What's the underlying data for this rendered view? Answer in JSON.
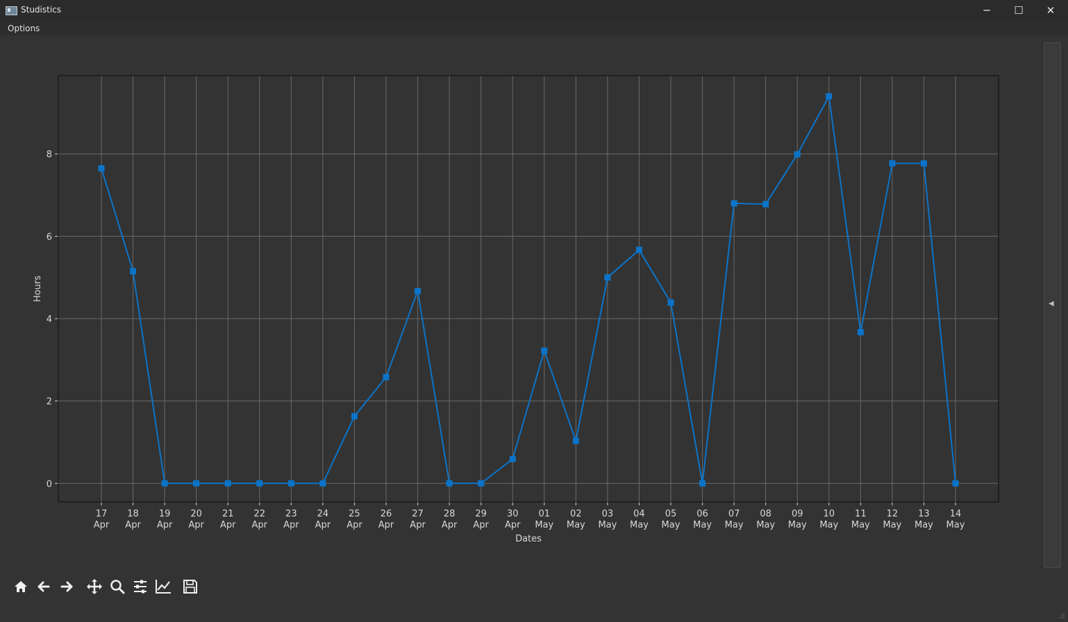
{
  "window": {
    "title": "Studistics",
    "minimize_glyph": "─",
    "maximize_glyph": "☐",
    "close_glyph": "✕"
  },
  "menu": {
    "items": [
      "Options"
    ]
  },
  "scrollbar": {
    "arrow_glyph": "◀"
  },
  "toolbar": {
    "tools": [
      "home-icon",
      "back-icon",
      "forward-icon",
      "pan-icon",
      "zoom-icon",
      "configure-subplots-icon",
      "edit-axis-icon",
      "save-icon"
    ]
  },
  "colors": {
    "background": "#333333",
    "line": "#0b74c9",
    "grid": "#6a6a6a",
    "text": "#d8d8d8"
  },
  "chart_data": {
    "type": "line",
    "xlabel": "Dates",
    "ylabel": "Hours",
    "ylim": [
      -0.45,
      9.9
    ],
    "yticks": [
      0,
      2,
      4,
      6,
      8
    ],
    "grid": true,
    "marker": "square",
    "x": [
      [
        "17",
        "Apr"
      ],
      [
        "18",
        "Apr"
      ],
      [
        "19",
        "Apr"
      ],
      [
        "20",
        "Apr"
      ],
      [
        "21",
        "Apr"
      ],
      [
        "22",
        "Apr"
      ],
      [
        "23",
        "Apr"
      ],
      [
        "24",
        "Apr"
      ],
      [
        "25",
        "Apr"
      ],
      [
        "26",
        "Apr"
      ],
      [
        "27",
        "Apr"
      ],
      [
        "28",
        "Apr"
      ],
      [
        "29",
        "Apr"
      ],
      [
        "30",
        "Apr"
      ],
      [
        "01",
        "May"
      ],
      [
        "02",
        "May"
      ],
      [
        "03",
        "May"
      ],
      [
        "04",
        "May"
      ],
      [
        "05",
        "May"
      ],
      [
        "06",
        "May"
      ],
      [
        "07",
        "May"
      ],
      [
        "08",
        "May"
      ],
      [
        "09",
        "May"
      ],
      [
        "10",
        "May"
      ],
      [
        "11",
        "May"
      ],
      [
        "12",
        "May"
      ],
      [
        "13",
        "May"
      ],
      [
        "14",
        "May"
      ]
    ],
    "series": [
      {
        "values": [
          7.65,
          5.15,
          0,
          0,
          0,
          0,
          0,
          0,
          1.63,
          2.58,
          4.67,
          0,
          0,
          0.59,
          3.22,
          1.03,
          5.0,
          5.67,
          4.39,
          0,
          6.8,
          6.78,
          7.99,
          9.4,
          3.67,
          7.77,
          7.77,
          0
        ]
      }
    ]
  }
}
